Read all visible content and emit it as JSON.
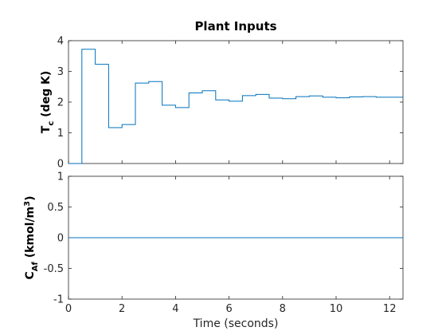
{
  "chart_data": [
    {
      "type": "line",
      "step": true,
      "title": "Plant Inputs",
      "ylabel": {
        "main": "T",
        "sub": "c",
        "rest": " (deg K)"
      },
      "xlim": [
        0,
        12.5
      ],
      "ylim": [
        0,
        4
      ],
      "xticks": [
        0,
        2,
        4,
        6,
        8,
        10,
        12
      ],
      "xtick_labels": [
        "",
        "",
        "",
        "",
        "",
        "",
        ""
      ],
      "yticks": [
        0,
        1,
        2,
        3,
        4
      ],
      "ytick_labels": [
        "0",
        "1",
        "2",
        "3",
        "4"
      ],
      "grid": false,
      "line_color": "#0072BD",
      "x": [
        0,
        0.5,
        0.5,
        1.0,
        1.0,
        1.5,
        1.5,
        2.0,
        2.0,
        2.5,
        2.5,
        3.0,
        3.0,
        3.5,
        3.5,
        4.0,
        4.0,
        4.5,
        4.5,
        5.0,
        5.0,
        5.5,
        5.5,
        6.0,
        6.0,
        6.5,
        6.5,
        7.0,
        7.0,
        7.5,
        7.5,
        8.0,
        8.0,
        8.5,
        8.5,
        9.0,
        9.0,
        9.5,
        9.5,
        10.0,
        10.0,
        10.5,
        10.5,
        11.0,
        11.0,
        11.5,
        11.5,
        12.0,
        12.0,
        12.5
      ],
      "y": [
        0,
        0,
        3.72,
        3.72,
        3.23,
        3.23,
        1.17,
        1.17,
        1.27,
        1.27,
        2.62,
        2.62,
        2.67,
        2.67,
        1.9,
        1.9,
        1.82,
        1.82,
        2.3,
        2.3,
        2.37,
        2.37,
        2.07,
        2.07,
        2.03,
        2.03,
        2.21,
        2.21,
        2.25,
        2.25,
        2.13,
        2.13,
        2.11,
        2.11,
        2.18,
        2.18,
        2.2,
        2.2,
        2.16,
        2.16,
        2.14,
        2.14,
        2.17,
        2.17,
        2.18,
        2.18,
        2.16,
        2.16,
        2.16,
        2.16
      ]
    },
    {
      "type": "line",
      "title": "",
      "ylabel": {
        "main": "C",
        "sub": "Af",
        "rest": " (kmol/m",
        "sup": "3",
        "end": ")"
      },
      "xlabel": "Time (seconds)",
      "xlim": [
        0,
        12.5
      ],
      "ylim": [
        -1,
        1
      ],
      "xticks": [
        0,
        2,
        4,
        6,
        8,
        10,
        12
      ],
      "xtick_labels": [
        "0",
        "2",
        "4",
        "6",
        "8",
        "10",
        "12"
      ],
      "yticks": [
        -1,
        -0.5,
        0,
        0.5,
        1
      ],
      "ytick_labels": [
        "-1",
        "-0.5",
        "0",
        "0.5",
        "1"
      ],
      "grid": false,
      "line_color": "#0072BD",
      "x": [
        0,
        12.5
      ],
      "y": [
        0,
        0
      ]
    }
  ]
}
